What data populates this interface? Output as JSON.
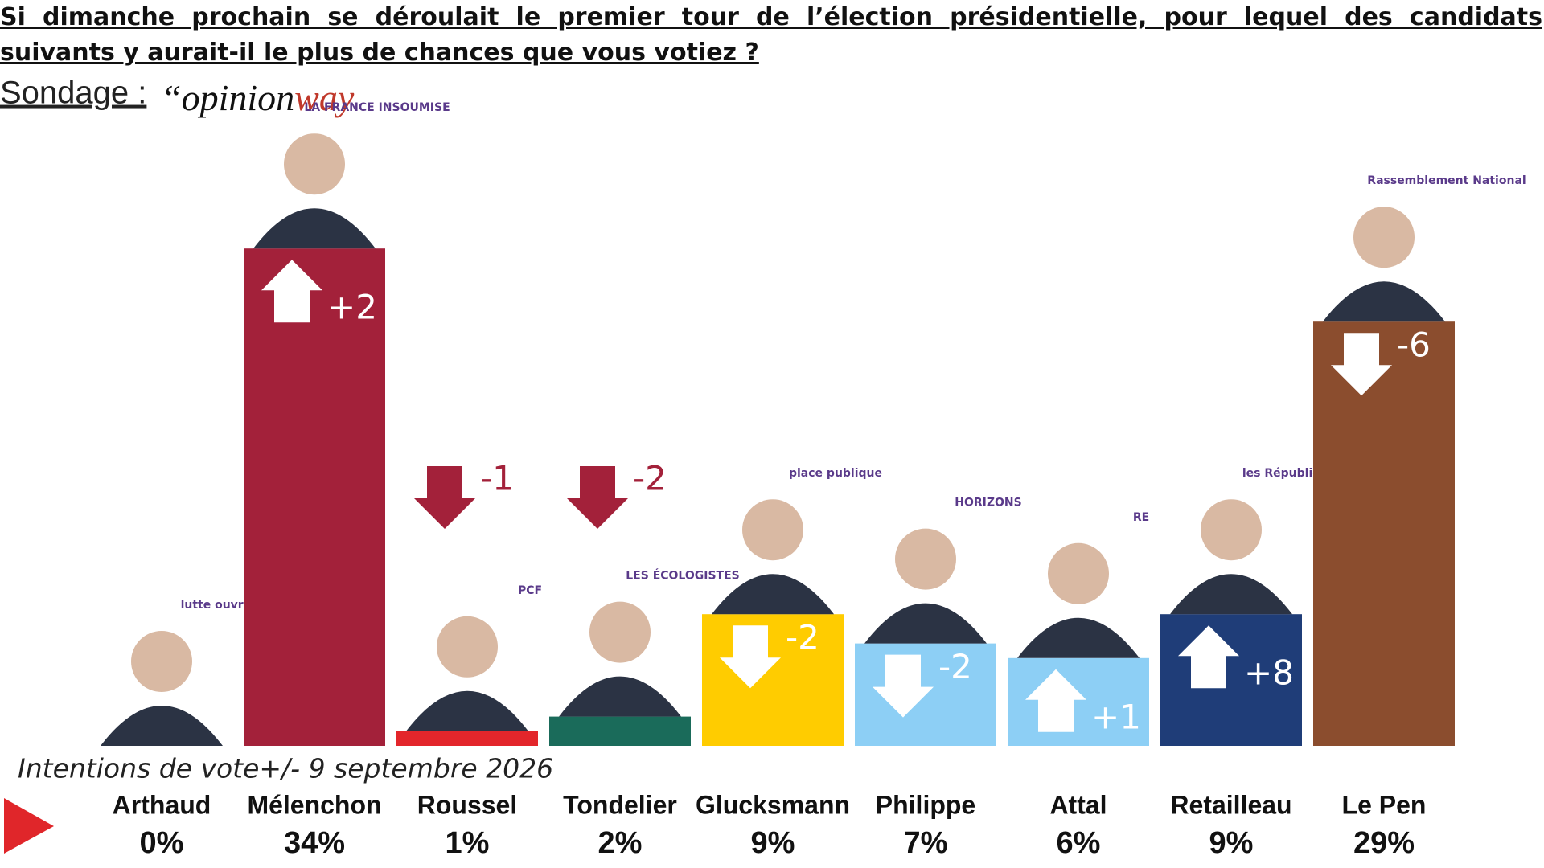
{
  "chart_data": {
    "type": "bar",
    "title": "Si dimanche prochain se déroulait le premier tour de l’élection présidentielle, pour lequel des candidats suivants y aurait-il le plus de chances que vous votiez ?",
    "subtitle": "Sondage :",
    "brand": [
      "“opinion",
      "way"
    ],
    "note": "Intentions de vote+/- 9 septembre 2026",
    "categories": [
      "Arthaud",
      "Mélenchon",
      "Roussel",
      "Tondelier",
      "Glucksmann",
      "Philippe",
      "Attal",
      "Retailleau",
      "Le Pen"
    ],
    "values": [
      0,
      34,
      1,
      2,
      9,
      7,
      6,
      9,
      29
    ],
    "value_labels": [
      "0%",
      "34%",
      "1%",
      "2%",
      "9%",
      "7%",
      "6%",
      "9%",
      "29%"
    ],
    "colors": [
      "#ffffff",
      "#a3213a",
      "#e3262b",
      "#1a6b5a",
      "#ffcc00",
      "#8dcff5",
      "#8dcff5",
      "#1f3d78",
      "#8b4d2e"
    ],
    "change_values": [
      null,
      2,
      -1,
      -2,
      -2,
      -2,
      1,
      8,
      -6
    ],
    "change_labels": [
      null,
      "+2",
      "-1",
      "-2",
      "-2",
      "-2",
      "+1",
      "+8",
      "-6"
    ],
    "parties": [
      "lutte ouvrière",
      "LA FRANCE INSOUMISE",
      "PCF",
      "LES ÉCOLOGISTES",
      "place publique",
      "HORIZONS",
      "RE",
      "les Républicains",
      "Rassemblement National"
    ]
  }
}
